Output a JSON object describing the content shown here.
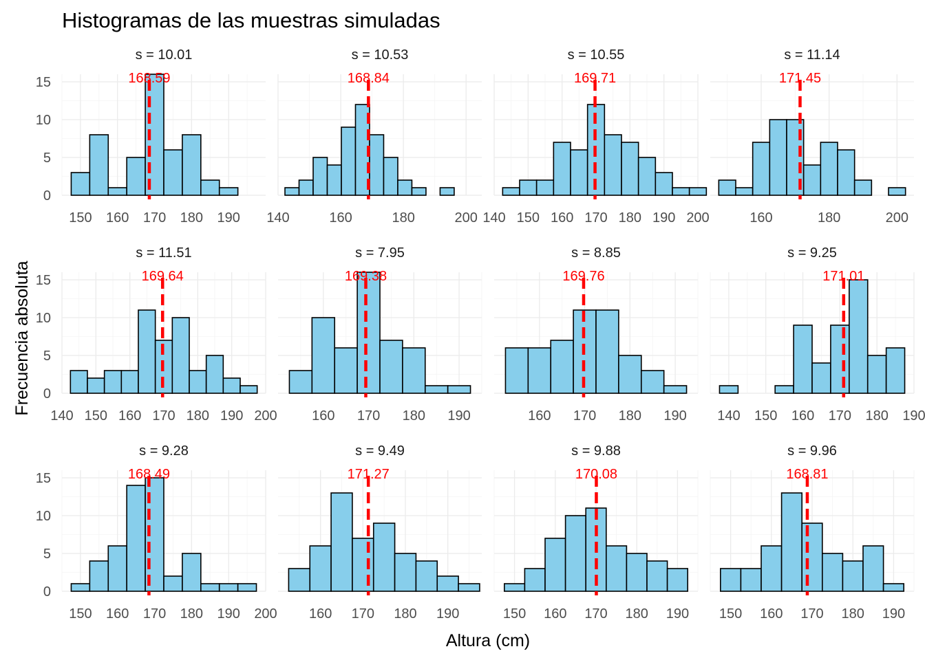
{
  "chart_data": {
    "type": "bar",
    "title": "Histogramas de las muestras simuladas",
    "xlabel": "Altura (cm)",
    "ylabel": "Frecuencia absoluta",
    "ylim": [
      0,
      16
    ],
    "yticks": [
      0,
      5,
      10,
      15
    ],
    "grid": true,
    "colors": {
      "bar_fill": "#87CEEB",
      "bar_stroke": "#000000",
      "mean_line": "#FF0000",
      "mean_label": "#FF0000"
    },
    "panels": [
      {
        "strip": "s = 10.01",
        "mean": 168.59,
        "mean_label": "168.59",
        "xlim": [
          145,
          200
        ],
        "xticks": [
          150,
          160,
          170,
          180,
          190
        ],
        "bin_start": 147.5,
        "bin_width": 5,
        "counts": [
          3,
          8,
          1,
          5,
          16,
          6,
          8,
          2,
          1
        ]
      },
      {
        "strip": "s = 10.53",
        "mean": 168.84,
        "mean_label": "168.84",
        "xlim": [
          140,
          205
        ],
        "xticks": [
          140,
          160,
          180,
          200
        ],
        "bin_start": 142.2,
        "bin_width": 4.5,
        "counts": [
          1,
          2,
          5,
          4,
          9,
          12,
          8,
          5,
          2,
          1,
          0,
          1
        ]
      },
      {
        "strip": "s = 10.55",
        "mean": 169.71,
        "mean_label": "169.71",
        "xlim": [
          140,
          200
        ],
        "xticks": [
          140,
          150,
          160,
          170,
          180,
          190,
          200
        ],
        "bin_start": 142.5,
        "bin_width": 5,
        "counts": [
          1,
          2,
          2,
          7,
          6,
          12,
          8,
          7,
          5,
          3,
          1,
          1
        ]
      },
      {
        "strip": "s = 11.14",
        "mean": 171.45,
        "mean_label": "171.45",
        "xlim": [
          145,
          205
        ],
        "xticks": [
          160,
          180,
          200
        ],
        "bin_start": 147.5,
        "bin_width": 5,
        "counts": [
          2,
          1,
          7,
          10,
          10,
          4,
          7,
          6,
          2,
          0,
          1
        ]
      },
      {
        "strip": "s = 11.51",
        "mean": 169.64,
        "mean_label": "169.64",
        "xlim": [
          140,
          200
        ],
        "xticks": [
          140,
          150,
          160,
          170,
          180,
          190,
          200
        ],
        "bin_start": 142.5,
        "bin_width": 5,
        "counts": [
          3,
          2,
          3,
          3,
          11,
          7,
          10,
          3,
          5,
          2,
          1
        ]
      },
      {
        "strip": "s = 7.95",
        "mean": 169.38,
        "mean_label": "169.38",
        "xlim": [
          150,
          195
        ],
        "xticks": [
          160,
          170,
          180,
          190
        ],
        "bin_start": 152.5,
        "bin_width": 5,
        "counts": [
          3,
          10,
          6,
          16,
          7,
          6,
          1,
          1
        ]
      },
      {
        "strip": "s = 8.85",
        "mean": 169.76,
        "mean_label": "169.76",
        "xlim": [
          150,
          195
        ],
        "xticks": [
          160,
          170,
          180,
          190
        ],
        "bin_start": 152.5,
        "bin_width": 5,
        "counts": [
          6,
          6,
          7,
          11,
          11,
          5,
          3,
          1
        ]
      },
      {
        "strip": "s = 9.25",
        "mean": 171.01,
        "mean_label": "171.01",
        "xlim": [
          135,
          190
        ],
        "xticks": [
          140,
          150,
          160,
          170,
          180,
          190
        ],
        "bin_start": 137.5,
        "bin_width": 5,
        "counts": [
          1,
          0,
          0,
          1,
          9,
          4,
          9,
          15,
          5,
          6
        ]
      },
      {
        "strip": "s = 9.28",
        "mean": 168.49,
        "mean_label": "168.49",
        "xlim": [
          145,
          200
        ],
        "xticks": [
          150,
          160,
          170,
          180,
          190,
          200
        ],
        "bin_start": 147.5,
        "bin_width": 5,
        "counts": [
          1,
          4,
          6,
          14,
          15,
          2,
          5,
          1,
          1,
          1
        ]
      },
      {
        "strip": "s = 9.49",
        "mean": 171.27,
        "mean_label": "171.27",
        "xlim": [
          150,
          198
        ],
        "xticks": [
          160,
          170,
          180,
          190
        ],
        "bin_start": 152.5,
        "bin_width": 5,
        "counts": [
          3,
          6,
          13,
          7,
          9,
          5,
          4,
          2,
          1
        ]
      },
      {
        "strip": "s = 9.88",
        "mean": 170.08,
        "mean_label": "170.08",
        "xlim": [
          145,
          195
        ],
        "xticks": [
          150,
          160,
          170,
          180,
          190
        ],
        "bin_start": 147.5,
        "bin_width": 5,
        "counts": [
          1,
          3,
          7,
          10,
          11,
          6,
          5,
          4,
          3
        ]
      },
      {
        "strip": "s = 9.96",
        "mean": 168.81,
        "mean_label": "168.81",
        "xlim": [
          145,
          195
        ],
        "xticks": [
          150,
          160,
          170,
          180,
          190
        ],
        "bin_start": 147.5,
        "bin_width": 5,
        "counts": [
          3,
          3,
          6,
          13,
          9,
          5,
          4,
          6,
          1
        ]
      }
    ]
  }
}
